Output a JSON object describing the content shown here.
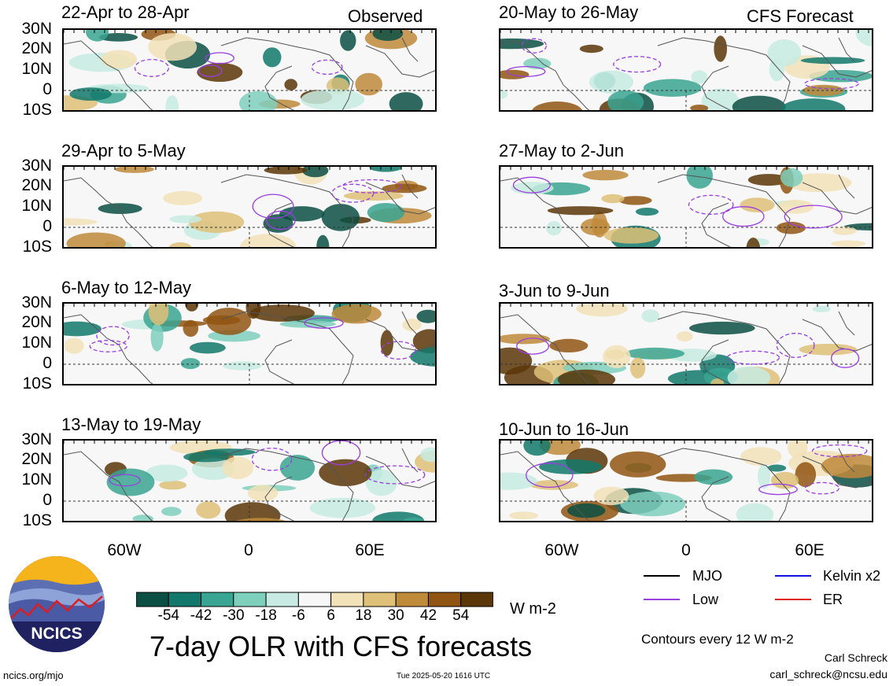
{
  "left_column_tag": "Observed",
  "right_column_tag": "CFS Forecast",
  "lat_labels": [
    "30N",
    "20N",
    "10N",
    "0",
    "10S"
  ],
  "lon_labels": [
    "60W",
    "0",
    "60E"
  ],
  "panels_left": [
    {
      "title": "22-Apr to 28-Apr"
    },
    {
      "title": "29-Apr to 5-May"
    },
    {
      "title": "6-May to 12-May"
    },
    {
      "title": "13-May to 19-May"
    }
  ],
  "panels_right": [
    {
      "title": "20-May to 26-May"
    },
    {
      "title": "27-May to 2-Jun"
    },
    {
      "title": "3-Jun to 9-Jun"
    },
    {
      "title": "10-Jun to 16-Jun"
    }
  ],
  "colorbar": {
    "labels": [
      "-54",
      "-42",
      "-30",
      "-18",
      "-6",
      "6",
      "18",
      "30",
      "42",
      "54"
    ],
    "colors": [
      "#0b4f44",
      "#12786b",
      "#3aa592",
      "#7fcfbd",
      "#c7ebe2",
      "#f7f7f7",
      "#f2e2b7",
      "#dec078",
      "#c08a3b",
      "#905512",
      "#5b3608"
    ],
    "units": "W m-2"
  },
  "main_title": "7-day OLR with CFS forecasts",
  "legend": [
    {
      "label": "MJO",
      "color": "#000000"
    },
    {
      "label": "Kelvin x2",
      "color": "#1010e0"
    },
    {
      "label": "Low",
      "color": "#9a3ee0"
    },
    {
      "label": "ER",
      "color": "#e02020"
    }
  ],
  "contour_note": "Contours every 12 W m-2",
  "author": "Carl Schreck",
  "email": "carl_schreck@ncsu.edu",
  "site": "ncics.org/mjo",
  "timestamp": "Tue 2025-05-20 1616 UTC",
  "logo_text": "NCICS"
}
